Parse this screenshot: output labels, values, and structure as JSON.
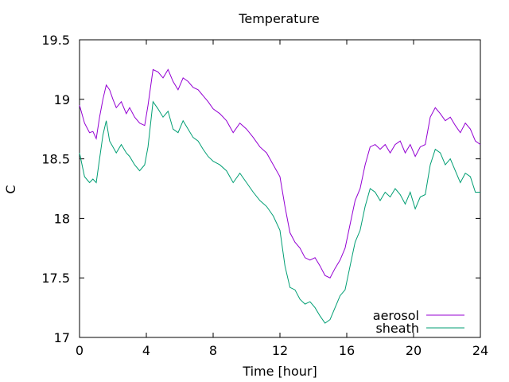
{
  "chart_data": {
    "type": "line",
    "title": "Temperature",
    "xlabel": "Time [hour]",
    "ylabel": "C",
    "xlim": [
      0,
      24
    ],
    "ylim": [
      17,
      19.5
    ],
    "xticks": [
      0,
      4,
      8,
      12,
      16,
      20,
      24
    ],
    "xtick_labels": [
      "0",
      "4",
      "8",
      "12",
      "16",
      "20",
      "24"
    ],
    "yticks": [
      17,
      17.5,
      18,
      18.5,
      19,
      19.5
    ],
    "ytick_labels": [
      "17",
      "17.5",
      "18",
      "18.5",
      "19",
      "19.5"
    ],
    "grid": false,
    "legend_position": "bottom-right",
    "series": [
      {
        "name": "aerosol",
        "color": "#9400d3",
        "x": [
          0,
          0.3,
          0.6,
          0.8,
          1.0,
          1.2,
          1.4,
          1.6,
          1.8,
          2.0,
          2.2,
          2.5,
          2.8,
          3.0,
          3.3,
          3.6,
          3.9,
          4.1,
          4.4,
          4.7,
          5.0,
          5.3,
          5.6,
          5.9,
          6.2,
          6.5,
          6.8,
          7.1,
          7.4,
          7.7,
          8.0,
          8.4,
          8.8,
          9.2,
          9.6,
          10.0,
          10.4,
          10.8,
          11.2,
          11.6,
          12.0,
          12.3,
          12.6,
          12.9,
          13.2,
          13.5,
          13.8,
          14.1,
          14.4,
          14.7,
          15.0,
          15.3,
          15.6,
          15.9,
          16.2,
          16.5,
          16.8,
          17.1,
          17.4,
          17.7,
          18.0,
          18.3,
          18.6,
          18.9,
          19.2,
          19.5,
          19.8,
          20.1,
          20.4,
          20.7,
          21.0,
          21.3,
          21.6,
          21.9,
          22.2,
          22.5,
          22.8,
          23.1,
          23.4,
          23.7,
          24.0
        ],
        "y": [
          18.95,
          18.8,
          18.72,
          18.73,
          18.67,
          18.85,
          19.0,
          19.12,
          19.08,
          19.0,
          18.93,
          18.98,
          18.88,
          18.93,
          18.85,
          18.8,
          18.78,
          18.95,
          19.25,
          19.23,
          19.18,
          19.25,
          19.15,
          19.08,
          19.18,
          19.15,
          19.1,
          19.08,
          19.03,
          18.98,
          18.92,
          18.88,
          18.82,
          18.72,
          18.8,
          18.75,
          18.68,
          18.6,
          18.55,
          18.45,
          18.35,
          18.1,
          17.88,
          17.8,
          17.75,
          17.67,
          17.65,
          17.67,
          17.6,
          17.52,
          17.5,
          17.58,
          17.65,
          17.75,
          17.95,
          18.15,
          18.25,
          18.45,
          18.6,
          18.62,
          18.58,
          18.62,
          18.55,
          18.62,
          18.65,
          18.55,
          18.62,
          18.52,
          18.6,
          18.62,
          18.85,
          18.93,
          18.88,
          18.82,
          18.85,
          18.78,
          18.72,
          18.8,
          18.75,
          18.65,
          18.62
        ]
      },
      {
        "name": "sheath",
        "color": "#009e73",
        "x": [
          0,
          0.3,
          0.6,
          0.8,
          1.0,
          1.2,
          1.4,
          1.6,
          1.8,
          2.0,
          2.2,
          2.5,
          2.8,
          3.0,
          3.3,
          3.6,
          3.9,
          4.1,
          4.4,
          4.7,
          5.0,
          5.3,
          5.6,
          5.9,
          6.2,
          6.5,
          6.8,
          7.1,
          7.4,
          7.7,
          8.0,
          8.4,
          8.8,
          9.2,
          9.6,
          10.0,
          10.4,
          10.8,
          11.2,
          11.6,
          12.0,
          12.3,
          12.6,
          12.9,
          13.2,
          13.5,
          13.8,
          14.1,
          14.4,
          14.7,
          15.0,
          15.3,
          15.6,
          15.9,
          16.2,
          16.5,
          16.8,
          17.1,
          17.4,
          17.7,
          18.0,
          18.3,
          18.6,
          18.9,
          19.2,
          19.5,
          19.8,
          20.1,
          20.4,
          20.7,
          21.0,
          21.3,
          21.6,
          21.9,
          22.2,
          22.5,
          22.8,
          23.1,
          23.4,
          23.7,
          24.0
        ],
        "y": [
          18.55,
          18.35,
          18.3,
          18.33,
          18.3,
          18.5,
          18.7,
          18.82,
          18.65,
          18.6,
          18.55,
          18.62,
          18.55,
          18.52,
          18.45,
          18.4,
          18.45,
          18.6,
          18.98,
          18.92,
          18.85,
          18.9,
          18.75,
          18.72,
          18.82,
          18.75,
          18.68,
          18.65,
          18.58,
          18.52,
          18.48,
          18.45,
          18.4,
          18.3,
          18.38,
          18.3,
          18.22,
          18.15,
          18.1,
          18.02,
          17.9,
          17.6,
          17.42,
          17.4,
          17.32,
          17.28,
          17.3,
          17.25,
          17.18,
          17.12,
          17.15,
          17.25,
          17.35,
          17.4,
          17.6,
          17.8,
          17.9,
          18.1,
          18.25,
          18.22,
          18.15,
          18.22,
          18.18,
          18.25,
          18.2,
          18.12,
          18.22,
          18.08,
          18.18,
          18.2,
          18.45,
          18.58,
          18.55,
          18.45,
          18.5,
          18.4,
          18.3,
          18.38,
          18.35,
          18.22,
          18.22
        ]
      }
    ]
  }
}
